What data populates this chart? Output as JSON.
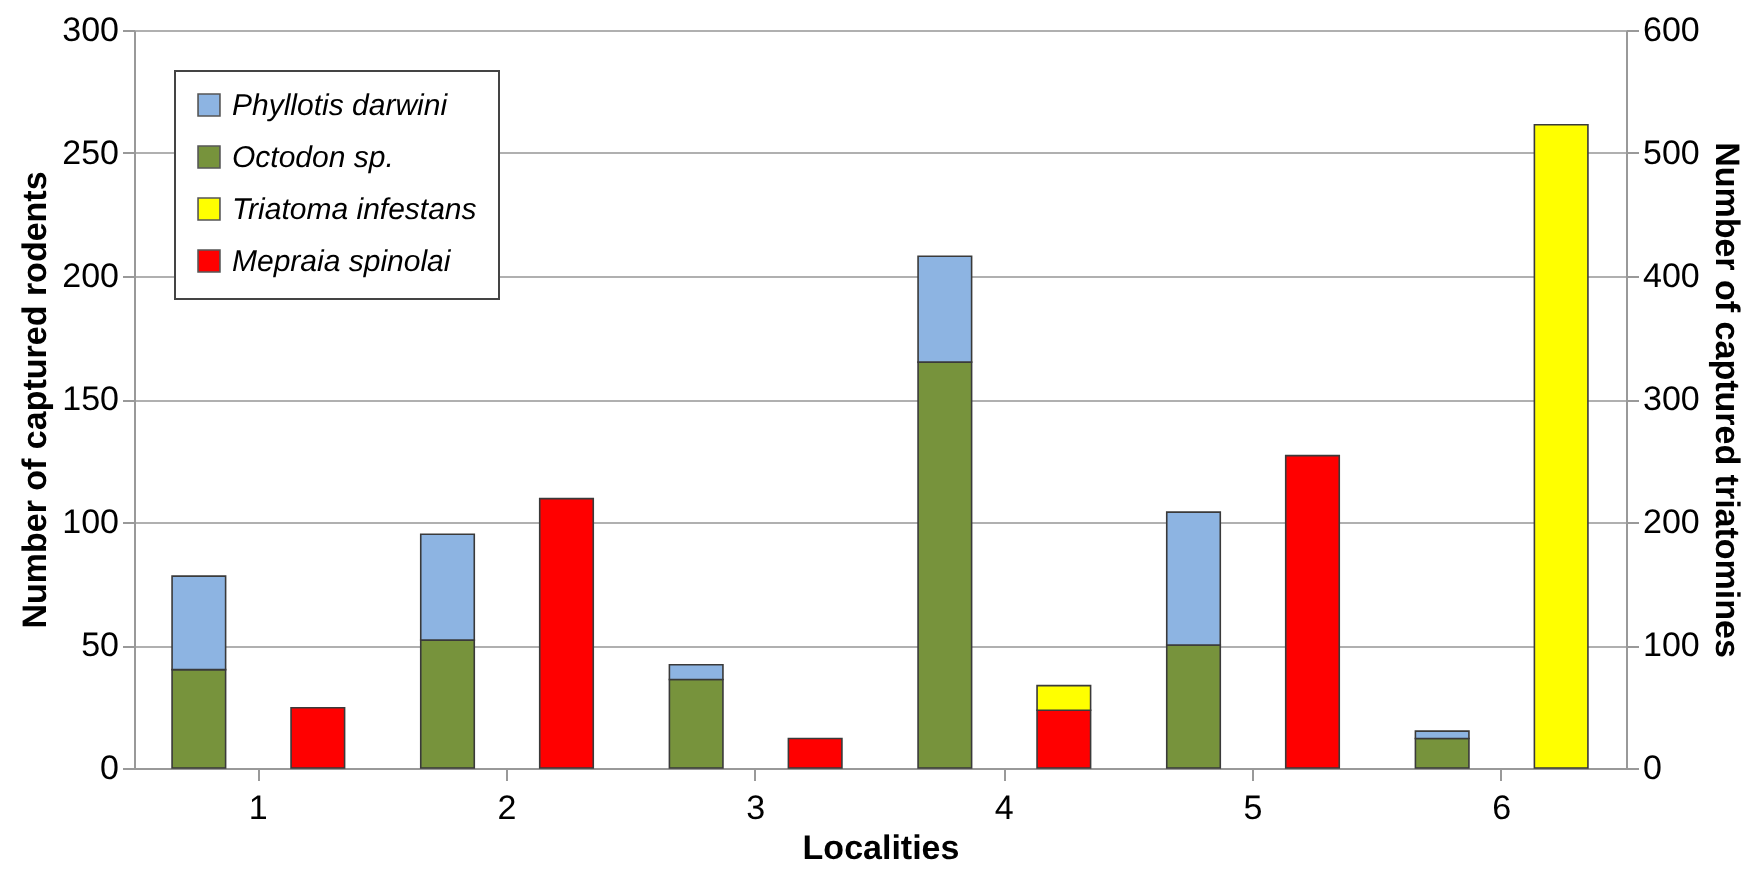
{
  "chart_data": {
    "type": "bar",
    "stacked": true,
    "xlabel": "Localities",
    "ylabel": "Number of captured rodents",
    "y2label": "Number of captured triatomines",
    "categories": [
      "1",
      "2",
      "3",
      "4",
      "5",
      "6"
    ],
    "series": [
      {
        "name": "Octodon sp.",
        "color": "#77933c",
        "values": [
          40,
          52,
          36,
          165,
          50,
          12
        ]
      },
      {
        "name": "Phyllotis darwini",
        "color": "#8db4e2",
        "values": [
          38,
          43,
          6,
          43,
          54,
          3
        ]
      },
      {
        "name": "Mepraia spinolai",
        "color": "#ff0000",
        "axis": "y2",
        "values": [
          49,
          219,
          24,
          47,
          254,
          null
        ]
      },
      {
        "name": "Triatoma infestans",
        "color": "#ffff00",
        "axis": "y2",
        "values": [
          null,
          null,
          null,
          20,
          null,
          523
        ]
      }
    ],
    "ylim": [
      0,
      300
    ],
    "yticks": [
      0,
      50,
      100,
      150,
      200,
      250,
      300
    ],
    "y2lim": [
      0,
      600
    ],
    "y2ticks": [
      0,
      100,
      200,
      300,
      400,
      500,
      600
    ],
    "grid": "y",
    "legend": "top left"
  }
}
